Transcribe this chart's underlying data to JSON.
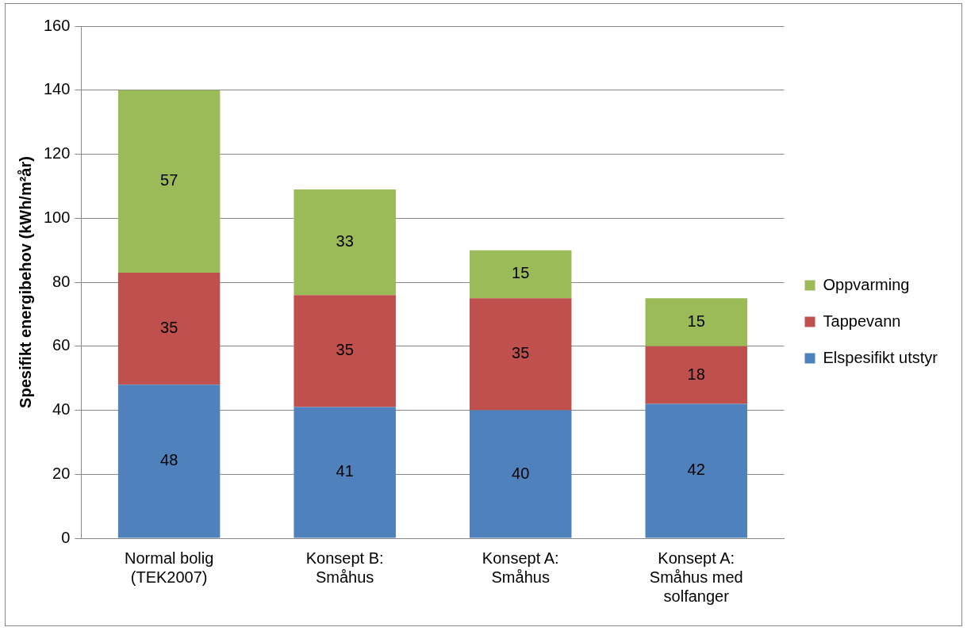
{
  "chart_data": {
    "type": "bar",
    "stacked": true,
    "ylabel": "Spesifikt energibehov (kWh/m²år)",
    "categories": [
      "Normal bolig (TEK2007)",
      "Konsept B: Småhus",
      "Konsept A: Småhus",
      "Konsept A: Småhus med solfanger"
    ],
    "series": [
      {
        "name": "Elspesifikt utstyr",
        "color": "#4f81bd",
        "values": [
          48,
          41,
          40,
          42
        ]
      },
      {
        "name": "Tappevann",
        "color": "#c0504d",
        "values": [
          35,
          35,
          35,
          18
        ]
      },
      {
        "name": "Oppvarming",
        "color": "#9bbb59",
        "values": [
          57,
          33,
          15,
          15
        ]
      }
    ],
    "ylim": [
      0,
      160
    ],
    "yticks": [
      0,
      20,
      40,
      60,
      80,
      100,
      120,
      140,
      160
    ],
    "grid": "y",
    "legend": "right",
    "data_labels": true
  }
}
